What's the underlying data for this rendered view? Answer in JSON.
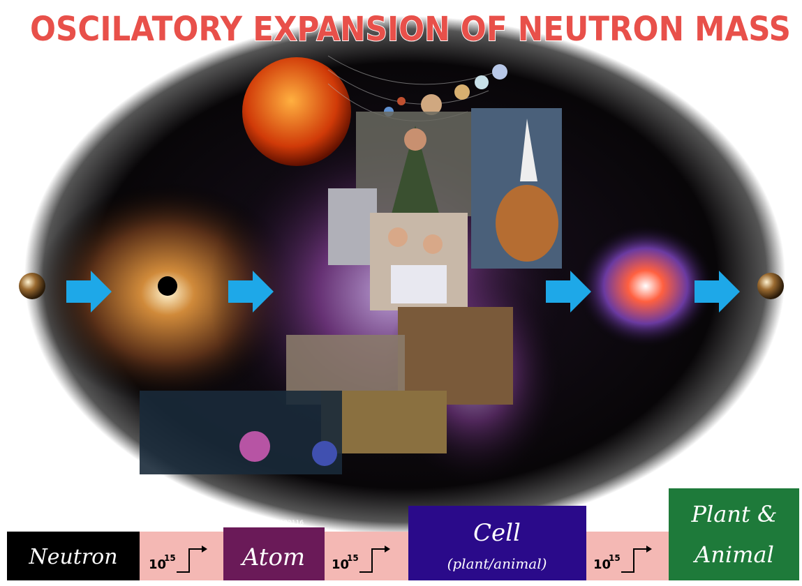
{
  "title": "OSCILATORY EXPANSION OF NEUTRON MASS",
  "copyright": "©REDRACHT@20122116",
  "steps": [
    {
      "label": "Neutron"
    },
    {
      "label": "Atom"
    },
    {
      "label": "Cell",
      "sublabel": "(plant/animal)"
    },
    {
      "label": "Plant &",
      "label2": "Animal"
    }
  ],
  "connectors": [
    {
      "base": "10",
      "exponent": "15"
    },
    {
      "base": "10",
      "exponent": "15"
    },
    {
      "base": "10",
      "exponent": "15"
    }
  ]
}
